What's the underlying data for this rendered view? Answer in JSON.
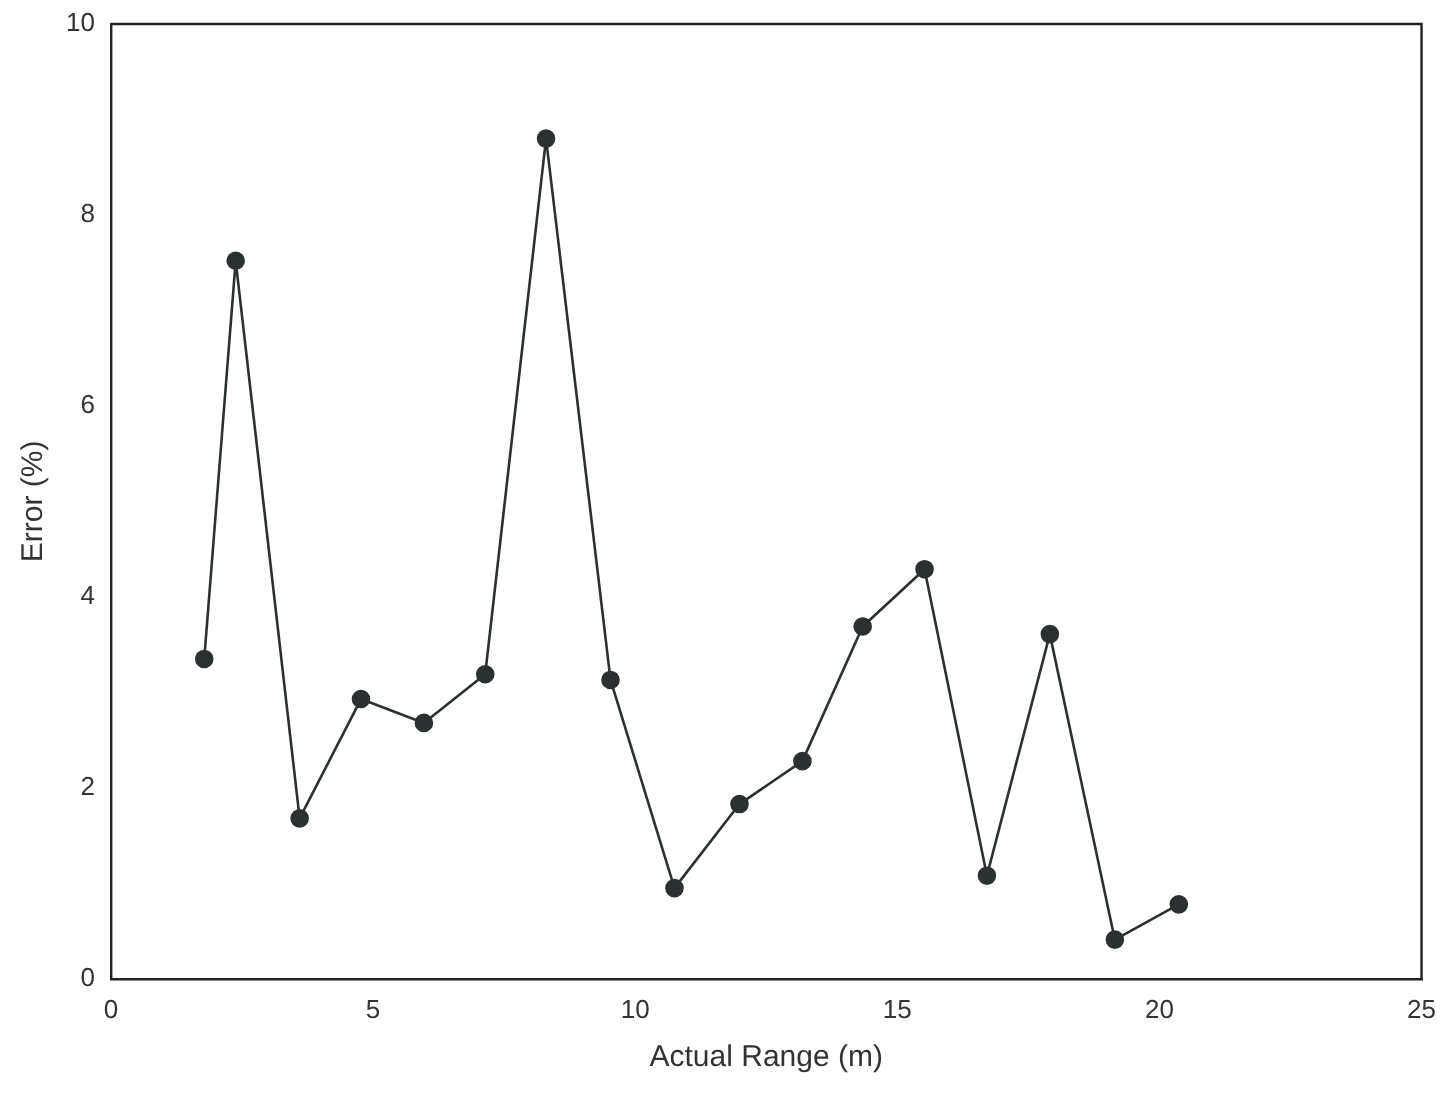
{
  "chart_data": {
    "type": "line",
    "xlabel": "Actual Range (m)",
    "ylabel": "Error (%)",
    "x": [
      1.78,
      2.38,
      3.6,
      4.77,
      5.97,
      7.14,
      8.3,
      9.53,
      10.75,
      11.99,
      13.19,
      14.34,
      15.52,
      16.71,
      17.91,
      19.15,
      20.37
    ],
    "series": [
      {
        "color": "#2b3030",
        "values": [
          3.35,
          7.52,
          1.68,
          2.93,
          2.68,
          3.19,
          8.8,
          3.13,
          0.95,
          1.83,
          2.28,
          3.69,
          4.29,
          1.08,
          3.61,
          0.41,
          0.78
        ]
      }
    ],
    "xlim": [
      0,
      25
    ],
    "xticks": [
      0,
      5,
      10,
      15,
      20,
      25
    ],
    "ylim": [
      0,
      10
    ],
    "yticks": [
      0,
      2,
      4,
      6,
      8,
      10
    ],
    "grid": false,
    "legend": false,
    "marker": "circle",
    "line_style": "solid"
  }
}
